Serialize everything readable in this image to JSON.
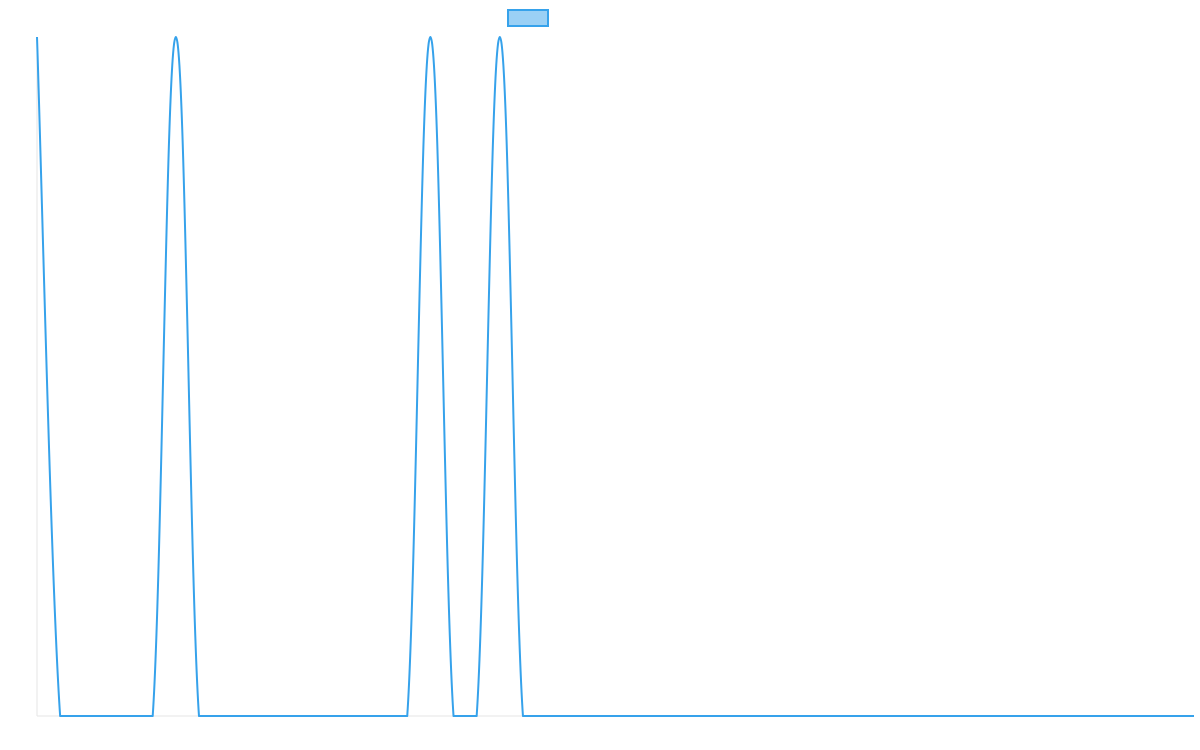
{
  "chart_data": {
    "type": "line",
    "title": "",
    "xlabel": "",
    "ylabel": "",
    "x": [
      0,
      1,
      2,
      3,
      4,
      5,
      6,
      7,
      8,
      9,
      10,
      11,
      12,
      13,
      14,
      15,
      16,
      17,
      18,
      19,
      20,
      21,
      22,
      23,
      24,
      25,
      26,
      27,
      28,
      29,
      30,
      31,
      32,
      33,
      34,
      35,
      36,
      37,
      38,
      39,
      40,
      41,
      42,
      43,
      44,
      45,
      46,
      47,
      48,
      49,
      50
    ],
    "series": [
      {
        "name": "",
        "values": [
          1,
          0,
          0,
          0,
          0,
          0,
          1,
          0,
          0,
          0,
          0,
          0,
          0,
          0,
          0,
          0,
          0,
          1,
          0,
          0,
          1,
          0,
          0,
          0,
          0,
          0,
          0,
          0,
          0,
          0,
          0,
          0,
          0,
          0,
          0,
          0,
          0,
          0,
          0,
          0,
          0,
          0,
          0,
          0,
          0,
          0,
          0,
          0,
          0,
          0,
          0
        ]
      }
    ],
    "xlim": [
      0,
      50
    ],
    "ylim": [
      0,
      1
    ],
    "grid": false,
    "x_ticks_shown": false,
    "y_ticks_shown": false,
    "legend_position": "top-center",
    "colors": {
      "line": "#36a2eb",
      "legend_fill": "#9ad0f5",
      "axis": "#e5e5e5"
    }
  }
}
